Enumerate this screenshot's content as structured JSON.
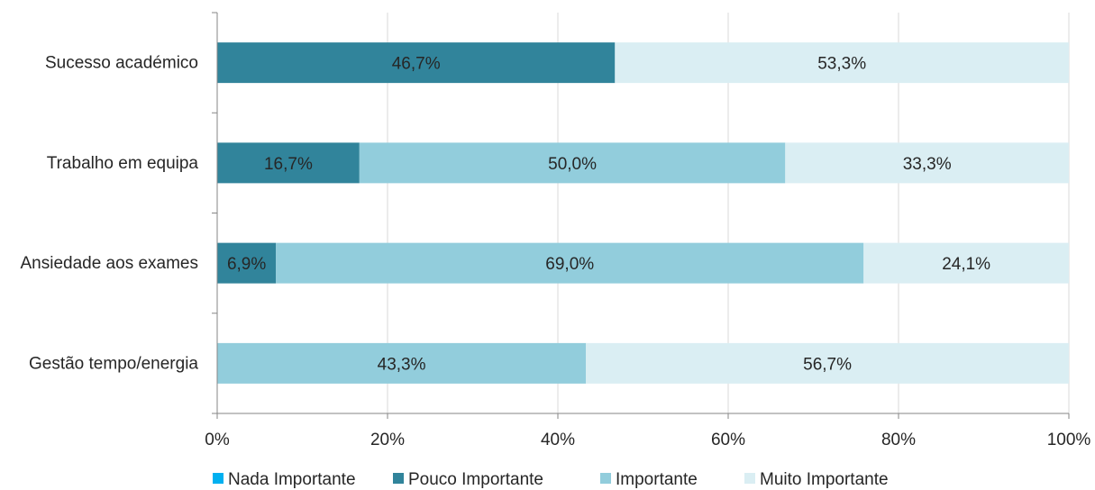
{
  "chart_data": {
    "type": "bar",
    "orientation": "horizontal",
    "stacked": "percent",
    "title": "",
    "xlabel": "",
    "ylabel": "",
    "xlim": [
      0,
      100
    ],
    "x_ticks": [
      "0%",
      "20%",
      "40%",
      "60%",
      "80%",
      "100%"
    ],
    "grid": "vertical",
    "legend_position": "bottom",
    "categories": [
      "Sucesso académico",
      "Trabalho em equipa",
      "Ansiedade aos exames",
      "Gestão tempo/energia"
    ],
    "series": [
      {
        "name": "Nada Importante",
        "color": "#00b0f0",
        "values": [
          0,
          0,
          0,
          0
        ],
        "labels": [
          "",
          "",
          "",
          ""
        ]
      },
      {
        "name": "Pouco Importante",
        "color": "#31849b",
        "values": [
          46.7,
          16.7,
          6.9,
          0
        ],
        "labels": [
          "46,7%",
          "16,7%",
          "6,9%",
          ""
        ]
      },
      {
        "name": "Importante",
        "color": "#92cddc",
        "values": [
          0,
          50.0,
          69.0,
          43.3
        ],
        "labels": [
          "",
          "50,0%",
          "69,0%",
          "43,3%"
        ]
      },
      {
        "name": "Muito Importante",
        "color": "#daeef3",
        "values": [
          53.3,
          33.3,
          24.1,
          56.7
        ],
        "labels": [
          "53,3%",
          "33,3%",
          "24,1%",
          "56,7%"
        ]
      }
    ]
  }
}
